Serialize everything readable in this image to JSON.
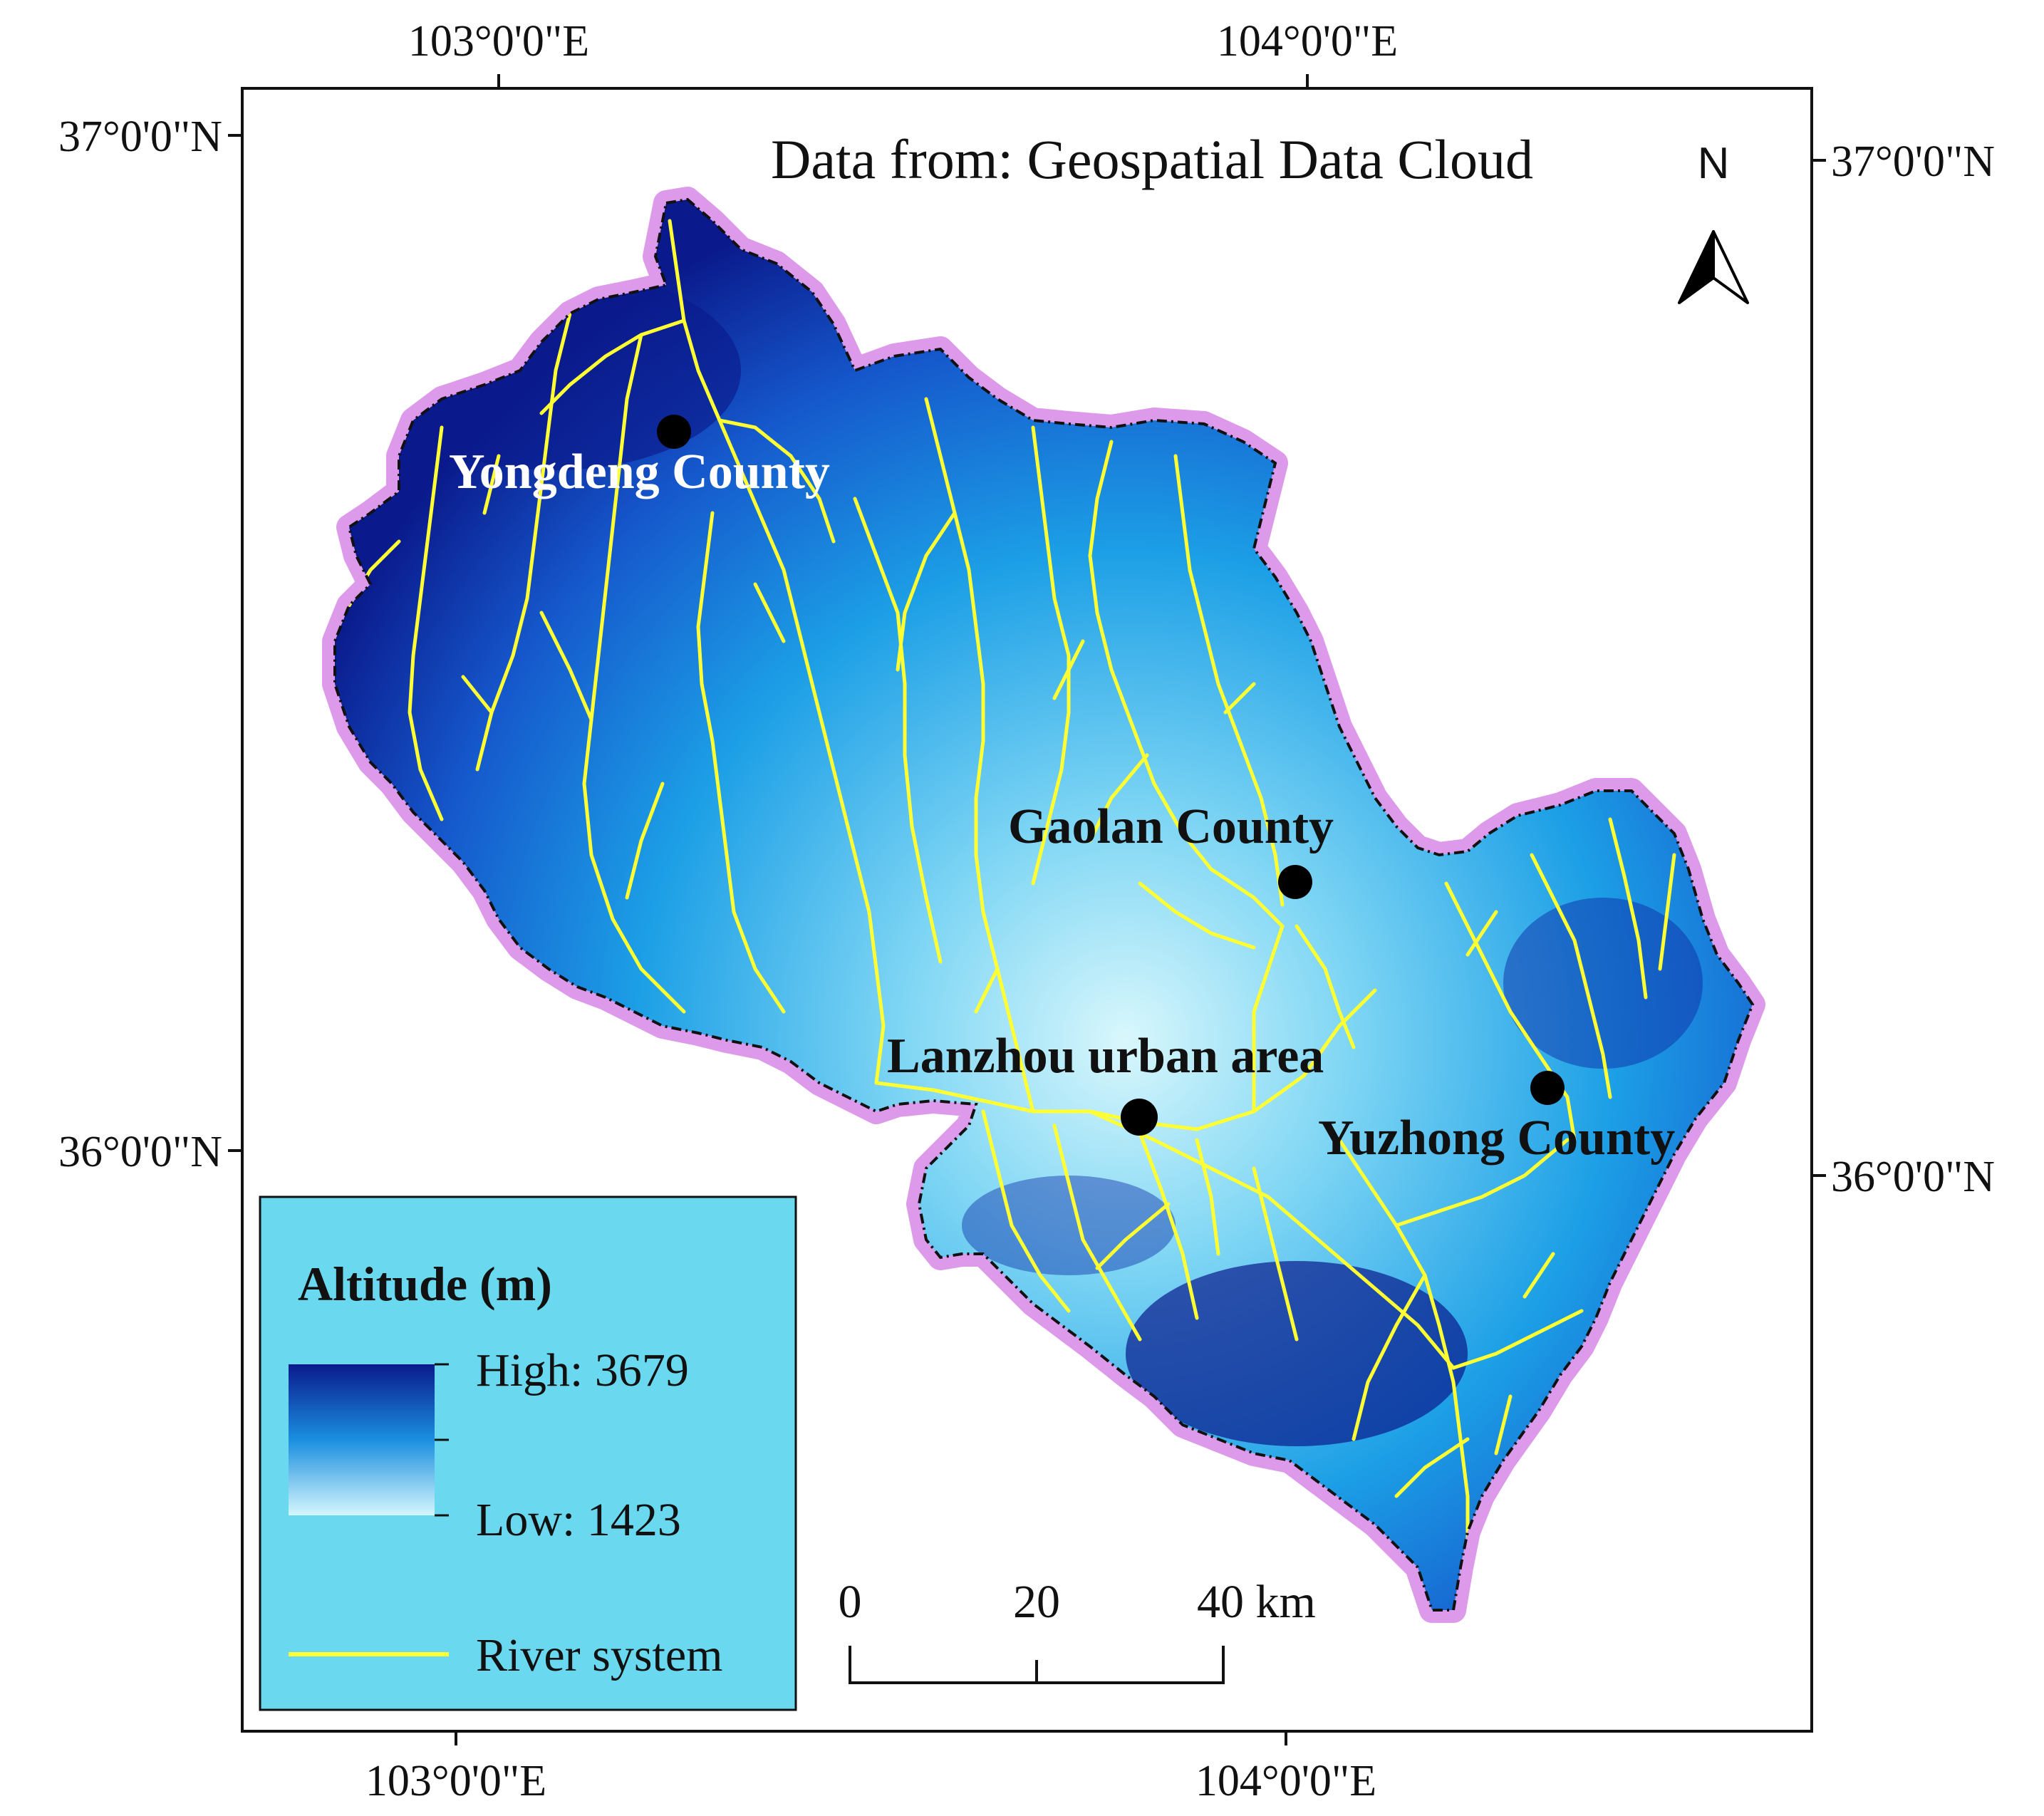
{
  "map": {
    "credit": "Data from: Geospatial Data Cloud",
    "north_label": "N",
    "graticule": {
      "top": [
        "103°0'0\"E",
        "104°0'0\"E"
      ],
      "bottom": [
        "103°0'0\"E",
        "104°0'0\"E"
      ],
      "left": [
        "37°0'0\"N",
        "36°0'0\"N"
      ],
      "right": [
        "37°0'0\"N",
        "36°0'0\"N"
      ]
    },
    "places": [
      {
        "name": "Yongdeng County",
        "color": "#ffffff"
      },
      {
        "name": "Gaolan County",
        "color": "#111111"
      },
      {
        "name": "Lanzhou urban area",
        "color": "#111111"
      },
      {
        "name": "Yuzhong County",
        "color": "#111111"
      }
    ],
    "colors": {
      "high": "#0a1a8c",
      "mid": "#1aa0e6",
      "low": "#cff4fb",
      "river": "#ffff33",
      "boundary_halo": "#d98ee8",
      "legend_bg": "#6ad9f0"
    }
  },
  "legend": {
    "title": "Altitude (m)",
    "high_label": "High: 3679",
    "low_label": "Low: 1423",
    "river_label": "River system"
  },
  "scale_bar": {
    "ticks": [
      "0",
      "20",
      "40 km"
    ]
  }
}
